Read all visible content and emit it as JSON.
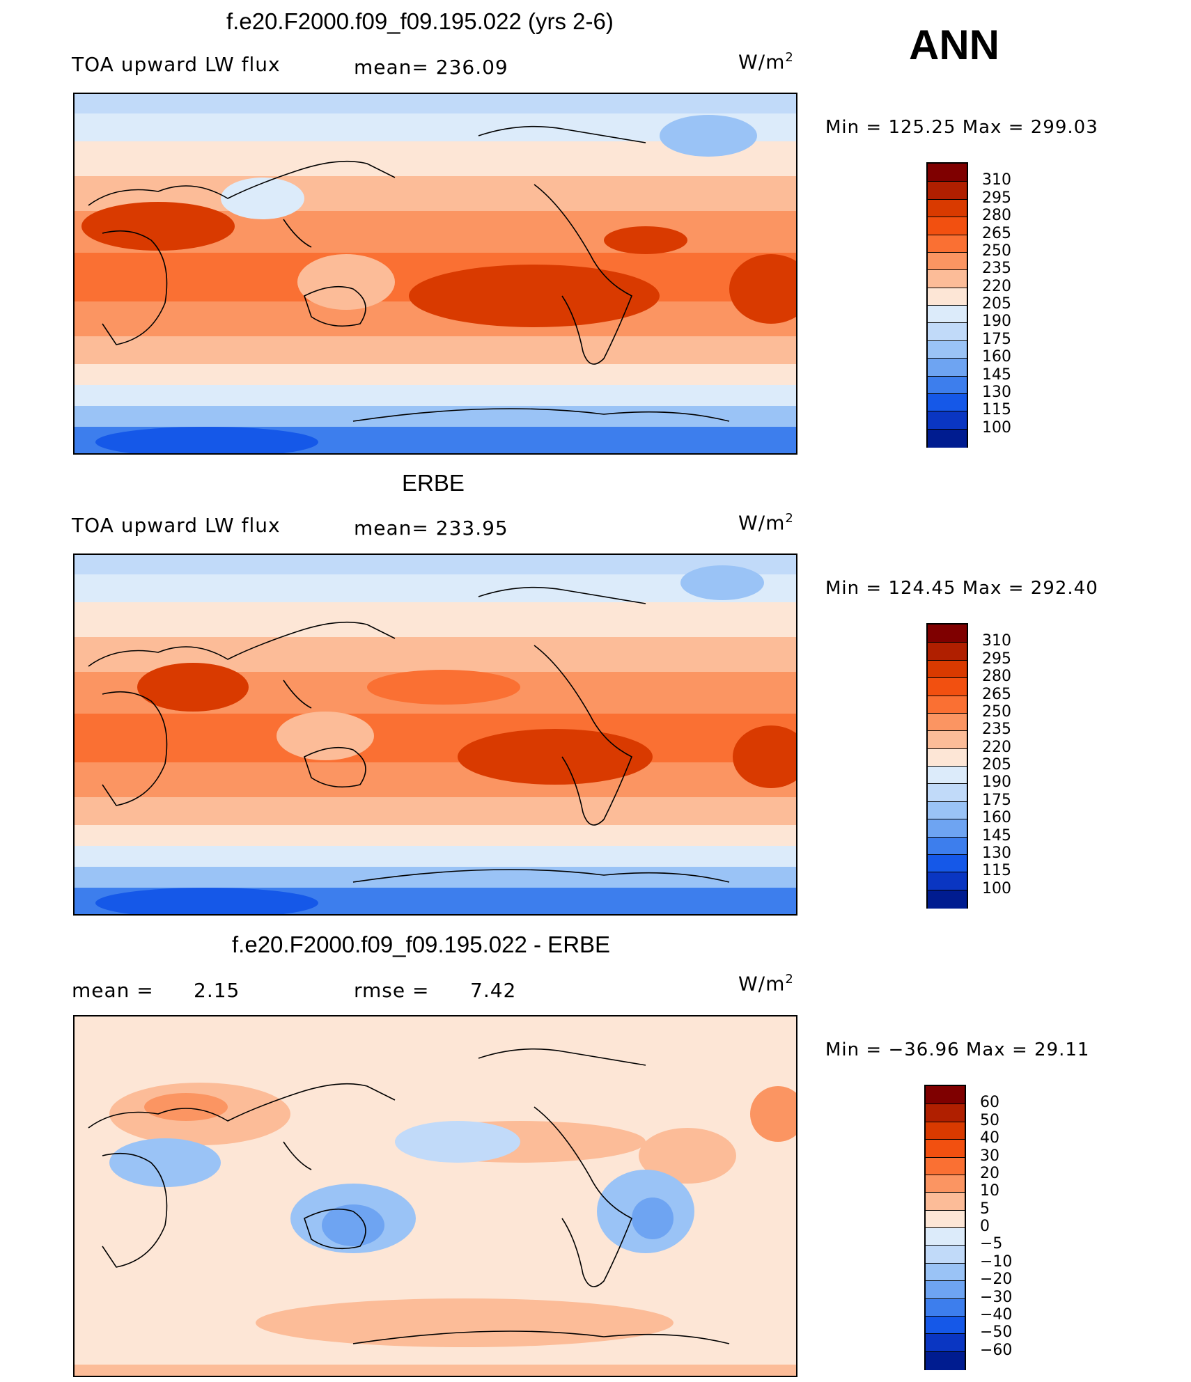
{
  "season": "ANN",
  "panels": [
    {
      "title": "f.e20.F2000.f09_f09.195.022 (yrs 2-6)",
      "left_label": "TOA upward LW flux",
      "center_label": "mean= 236.09",
      "units": "W/m",
      "units_sup": "2",
      "minmax": "Min = 125.25 Max = 299.03",
      "colorbar": {
        "labels": [
          "310",
          "295",
          "280",
          "265",
          "250",
          "235",
          "220",
          "205",
          "190",
          "175",
          "160",
          "145",
          "130",
          "115",
          "100"
        ],
        "colors": [
          "#7f0000",
          "#b01f00",
          "#d93a00",
          "#f25010",
          "#fa7033",
          "#fb9562",
          "#fcbc98",
          "#fde6d6",
          "#dcebfa",
          "#c1daf9",
          "#9ac3f6",
          "#6ea4f2",
          "#3d7eed",
          "#1558e8",
          "#0a36c2",
          "#001c90"
        ]
      }
    },
    {
      "title": "ERBE",
      "left_label": "TOA upward LW flux",
      "center_label": "mean= 233.95",
      "units": "W/m",
      "units_sup": "2",
      "minmax": "Min = 124.45 Max = 292.40",
      "colorbar": {
        "labels": [
          "310",
          "295",
          "280",
          "265",
          "250",
          "235",
          "220",
          "205",
          "190",
          "175",
          "160",
          "145",
          "130",
          "115",
          "100"
        ],
        "colors": [
          "#7f0000",
          "#b01f00",
          "#d93a00",
          "#f25010",
          "#fa7033",
          "#fb9562",
          "#fcbc98",
          "#fde6d6",
          "#dcebfa",
          "#c1daf9",
          "#9ac3f6",
          "#6ea4f2",
          "#3d7eed",
          "#1558e8",
          "#0a36c2",
          "#001c90"
        ]
      }
    },
    {
      "title": "f.e20.F2000.f09_f09.195.022 - ERBE",
      "left_label": "mean =",
      "left_value": "2.15",
      "center_label": "rmse =",
      "center_value": "7.42",
      "units": "W/m",
      "units_sup": "2",
      "minmax": "Min = −36.96 Max =   29.11",
      "colorbar": {
        "labels": [
          "60",
          "50",
          "40",
          "30",
          "20",
          "10",
          "5",
          "0",
          "−5",
          "−10",
          "−20",
          "−30",
          "−40",
          "−50",
          "−60"
        ],
        "colors": [
          "#7f0000",
          "#b01f00",
          "#d93a00",
          "#f25010",
          "#fa7033",
          "#fb9562",
          "#fcbc98",
          "#fde6d6",
          "#dcebfa",
          "#c1daf9",
          "#9ac3f6",
          "#6ea4f2",
          "#3d7eed",
          "#1558e8",
          "#0a36c2",
          "#001c90"
        ]
      }
    }
  ]
}
